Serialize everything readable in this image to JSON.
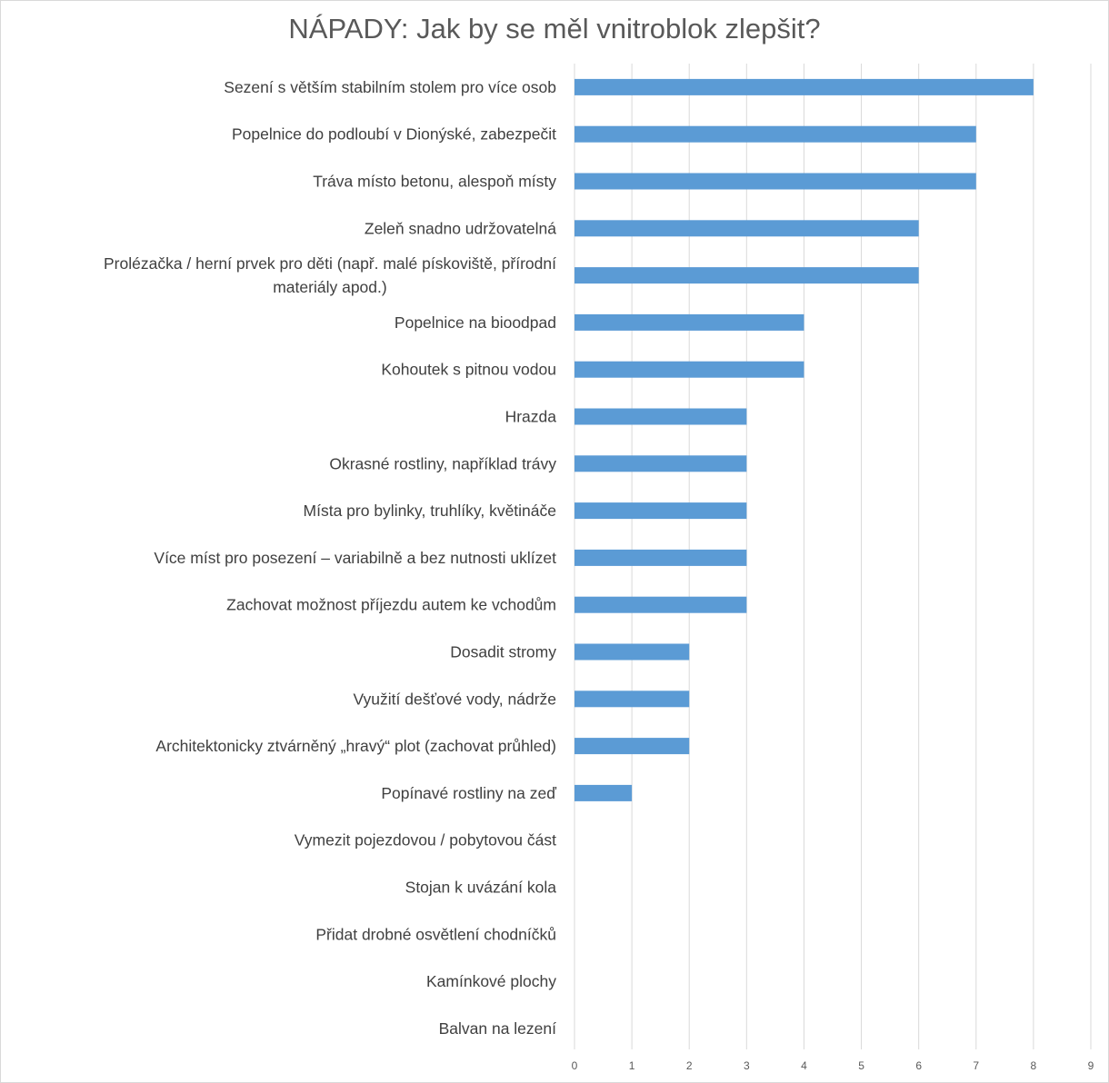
{
  "chart_data": {
    "type": "bar",
    "orientation": "horizontal",
    "title": "NÁPADY: Jak by se měl vnitroblok zlepšit?",
    "categories": [
      "Sezení s větším stabilním stolem pro více osob",
      "Popelnice do podloubí v Dionýské, zabezpečit",
      "Tráva místo betonu, alespoň místy",
      "Zeleň snadno udržovatelná",
      "Prolézačka / herní prvek pro děti (např. malé pískoviště, přírodní materiály apod.)",
      "Popelnice na bioodpad",
      "Kohoutek s pitnou vodou",
      "Hrazda",
      "Okrasné rostliny, například trávy",
      "Místa pro bylinky, truhlíky, květináče",
      "Více míst pro posezení – variabilně a bez nutnosti uklízet",
      "Zachovat možnost příjezdu autem ke vchodům",
      "Dosadit stromy",
      "Využití dešťové vody, nádrže",
      "Architektonicky ztvárněný „hravý“ plot (zachovat průhled)",
      "Popínavé rostliny na zeď",
      "Vymezit pojezdovou / pobytovou část",
      "Stojan k uvázání kola",
      "Přidat drobné osvětlení chodníčků",
      "Kamínkové plochy",
      "Balvan na lezení"
    ],
    "values": [
      8,
      7,
      7,
      6,
      6,
      4,
      4,
      3,
      3,
      3,
      3,
      3,
      2,
      2,
      2,
      1,
      0,
      0,
      0,
      0,
      0
    ],
    "xlim": [
      0,
      9
    ],
    "xticks": [
      "0",
      "1",
      "2",
      "3",
      "4",
      "5",
      "6",
      "7",
      "8",
      "9"
    ],
    "grid": "vertical",
    "legend": "none",
    "bar_color": "#5b9bd5",
    "grid_color": "#d9d9d9",
    "title_color": "#595959",
    "label_color": "#404040"
  }
}
